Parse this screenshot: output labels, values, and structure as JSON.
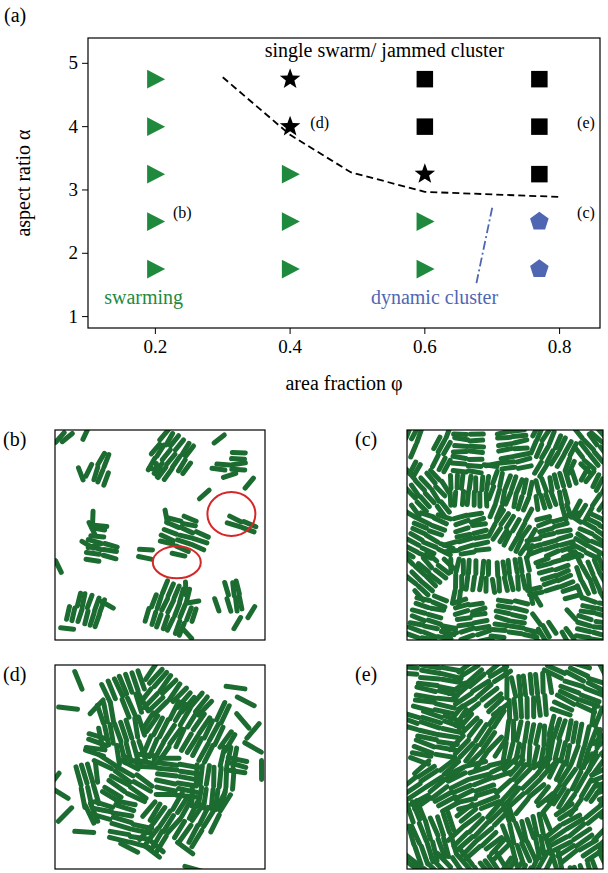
{
  "chart_data": {
    "type": "scatter",
    "panel_label": "(a)",
    "x_label": "area fraction φ",
    "y_label": "aspect ratio α",
    "xlim": [
      0.1,
      0.86
    ],
    "ylim": [
      0.82,
      5.4
    ],
    "xticks": [
      0.2,
      0.4,
      0.6,
      0.8
    ],
    "yticks": [
      1,
      2,
      3,
      4,
      5
    ],
    "grid": false,
    "series": [
      {
        "type": "scatter",
        "marker": "triangle-right",
        "color": "#1f8a3e",
        "x": [
          0.2,
          0.2,
          0.2,
          0.2,
          0.2,
          0.4,
          0.4,
          0.4,
          0.6,
          0.6
        ],
        "values": [
          1.75,
          2.5,
          3.25,
          4,
          4.75,
          1.75,
          2.5,
          3.25,
          1.75,
          2.5
        ]
      },
      {
        "type": "scatter",
        "marker": "star",
        "color": "#000000",
        "x": [
          0.4,
          0.4,
          0.6
        ],
        "values": [
          4,
          4.75,
          3.25
        ]
      },
      {
        "type": "scatter",
        "marker": "square",
        "color": "#000000",
        "x": [
          0.6,
          0.6,
          0.77,
          0.77,
          0.77
        ],
        "values": [
          4,
          4.75,
          3.25,
          4,
          4.75
        ]
      },
      {
        "type": "scatter",
        "marker": "pentagon",
        "color": "#4f67b3",
        "x": [
          0.77,
          0.77
        ],
        "values": [
          1.75,
          2.5
        ]
      },
      {
        "type": "line",
        "line_style": "dashed",
        "color": "#000000",
        "x": [
          0.3,
          0.4,
          0.49,
          0.6,
          0.8
        ],
        "values": [
          4.78,
          3.87,
          3.28,
          2.97,
          2.89
        ]
      },
      {
        "type": "line",
        "line_style": "dashdot",
        "color": "#4f67b3",
        "x": [
          0.7,
          0.676
        ],
        "values": [
          2.72,
          1.5
        ]
      }
    ],
    "annotations": [
      {
        "text": "single swarm/ jammed cluster",
        "x": 0.54,
        "y": 5.2,
        "color": "#000000"
      },
      {
        "text": "swarming",
        "x": 0.124,
        "y": 1.3,
        "color": "#1f8a3e"
      },
      {
        "text": "dynamic cluster",
        "x": 0.52,
        "y": 1.3,
        "color": "#4f67b3"
      },
      {
        "text": "(b)",
        "x": 0.226,
        "y": 2.65,
        "color": "#000000"
      },
      {
        "text": "(d)",
        "x": 0.43,
        "y": 4.07,
        "color": "#000000"
      },
      {
        "text": "(c)",
        "x": 0.826,
        "y": 2.65,
        "color": "#000000"
      },
      {
        "text": "(e)",
        "x": 0.826,
        "y": 4.07,
        "color": "#000000"
      }
    ]
  },
  "snapshots": [
    {
      "label": "(b)"
    },
    {
      "label": "(c)"
    },
    {
      "label": "(d)"
    },
    {
      "label": "(e)"
    }
  ]
}
